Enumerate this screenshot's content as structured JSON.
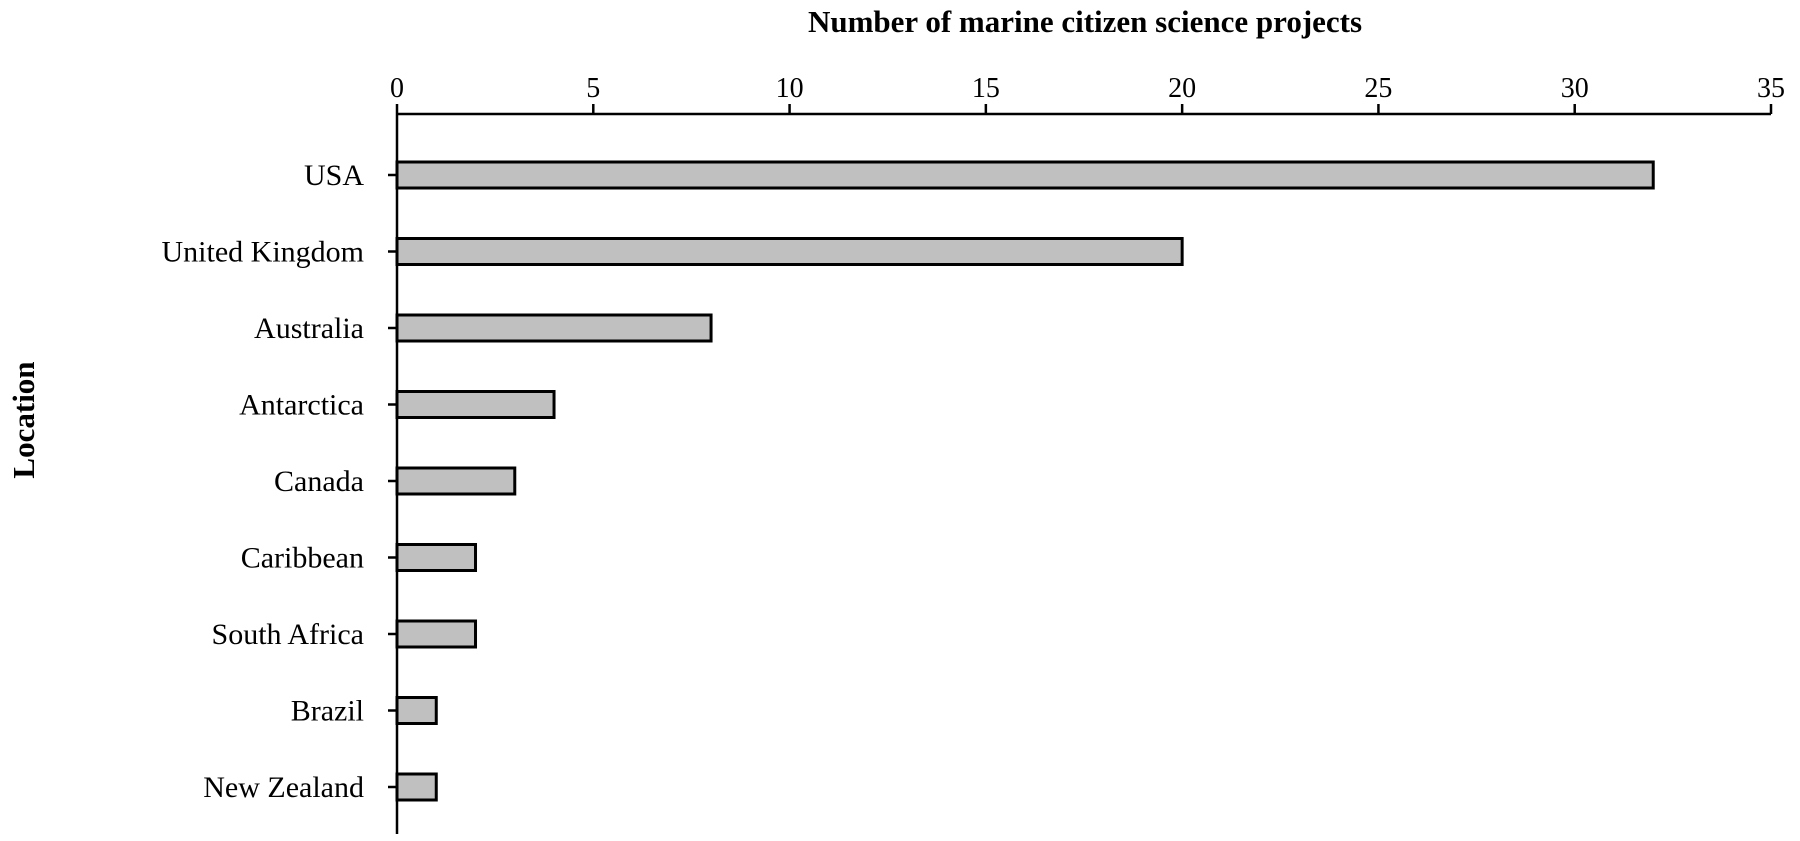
{
  "chart_data": {
    "type": "bar",
    "orientation": "horizontal",
    "title": "",
    "xlabel": "Number of marine citizen science projects",
    "ylabel": "Location",
    "xaxis_position": "top",
    "categories": [
      "USA",
      "United Kingdom",
      "Australia",
      "Antarctica",
      "Canada",
      "Caribbean",
      "South Africa",
      "Brazil",
      "New Zealand"
    ],
    "values": [
      32,
      20,
      8,
      4,
      3,
      2,
      2,
      1,
      1
    ],
    "xlim": [
      0,
      35
    ],
    "xticks": [
      0,
      5,
      10,
      15,
      20,
      25,
      30,
      35
    ],
    "grid": false,
    "legend": "none",
    "bar_color": "#c0c0c0",
    "edge_color": "#000000"
  }
}
